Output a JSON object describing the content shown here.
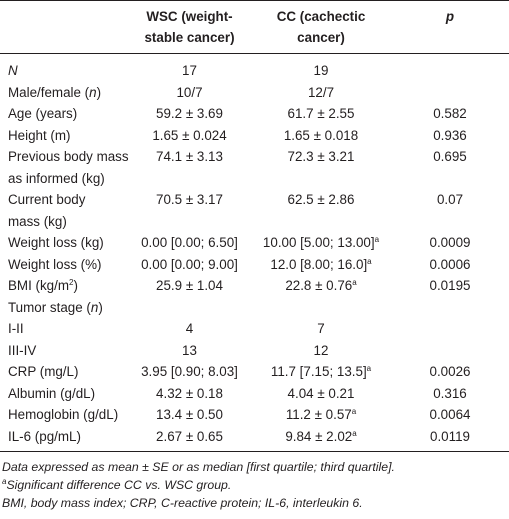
{
  "table": {
    "columns": [
      "WSC (weight-stable cancer)",
      "CC (cachectic cancer)",
      [
        {
          "t": "p",
          "i": true
        }
      ]
    ],
    "rows": [
      {
        "label": [
          {
            "t": "N",
            "i": true
          }
        ],
        "wsc": "17",
        "cc": "19"
      },
      {
        "label": [
          {
            "t": "Male/female ("
          },
          {
            "t": "n",
            "i": true
          },
          {
            "t": ")"
          }
        ],
        "wsc": "10/7",
        "cc": "12/7"
      },
      {
        "label": "Age (years)",
        "wsc": "59.2 ± 3.69",
        "cc": "61.7 ± 2.55",
        "p": "0.582"
      },
      {
        "label": "Height (m)",
        "wsc": "1.65 ± 0.024",
        "cc": "1.65 ± 0.018",
        "p": "0.936"
      },
      {
        "label": [
          {
            "t": "Previous body mass"
          },
          {
            "t": "as informed (kg)",
            "line": true
          }
        ],
        "wsc": "74.1 ± 3.13",
        "cc": "72.3 ± 3.21",
        "p": "0.695"
      },
      {
        "label": [
          {
            "t": "Current body"
          },
          {
            "t": "mass (kg)",
            "line": true
          }
        ],
        "wsc": "70.5 ± 3.17",
        "cc": "62.5 ± 2.86",
        "p": "0.07"
      },
      {
        "label": "Weight loss (kg)",
        "wsc": "0.00 [0.00; 6.50]",
        "cc": [
          {
            "t": "10.00 [5.00; 13.00]"
          },
          {
            "t": "a",
            "sup": true
          }
        ],
        "p": "0.0009"
      },
      {
        "label": "Weight loss (%)",
        "wsc": "0.00 [0.00; 9.00]",
        "cc": [
          {
            "t": "12.0 [8.00; 16.0]"
          },
          {
            "t": "a",
            "sup": true
          }
        ],
        "p": "0.0006"
      },
      {
        "label": [
          {
            "t": "BMI (kg/m"
          },
          {
            "t": "2",
            "sup": true
          },
          {
            "t": ")"
          }
        ],
        "wsc": "25.9 ± 1.04",
        "cc": [
          {
            "t": "22.8 ± 0.76"
          },
          {
            "t": "a",
            "sup": true
          }
        ],
        "p": "0.0195"
      },
      {
        "label": [
          {
            "t": "Tumor stage ("
          },
          {
            "t": "n",
            "i": true
          },
          {
            "t": ")"
          }
        ]
      },
      {
        "label": "I-II",
        "wsc": "4",
        "cc": "7"
      },
      {
        "label": "III-IV",
        "wsc": "13",
        "cc": "12"
      },
      {
        "label": "CRP (mg/L)",
        "wsc": "3.95 [0.90; 8.03]",
        "cc": [
          {
            "t": "11.7 [7.15; 13.5]"
          },
          {
            "t": "a",
            "sup": true
          }
        ],
        "p": "0.0026"
      },
      {
        "label": "Albumin (g/dL)",
        "wsc": "4.32 ± 0.18",
        "cc": "4.04 ± 0.21",
        "p": "0.316"
      },
      {
        "label": "Hemoglobin (g/dL)",
        "wsc": "13.4 ± 0.50",
        "cc": [
          {
            "t": "11.2 ± 0.57"
          },
          {
            "t": "a",
            "sup": true
          }
        ],
        "p": "0.0064"
      },
      {
        "label": "IL-6 (pg/mL)",
        "wsc": "2.67 ± 0.65",
        "cc": [
          {
            "t": "9.84 ± 2.02"
          },
          {
            "t": "a",
            "sup": true
          }
        ],
        "p": "0.0119"
      }
    ]
  },
  "footnotes": [
    [
      {
        "t": "Data expressed as mean ± SE or as median [first quartile; third quartile]."
      }
    ],
    [
      {
        "t": "a",
        "sup": true
      },
      {
        "t": "Significant difference CC vs. WSC group."
      }
    ],
    [
      {
        "t": "BMI, body mass index; CRP, C-reactive protein; IL-6, interleukin 6."
      }
    ]
  ]
}
